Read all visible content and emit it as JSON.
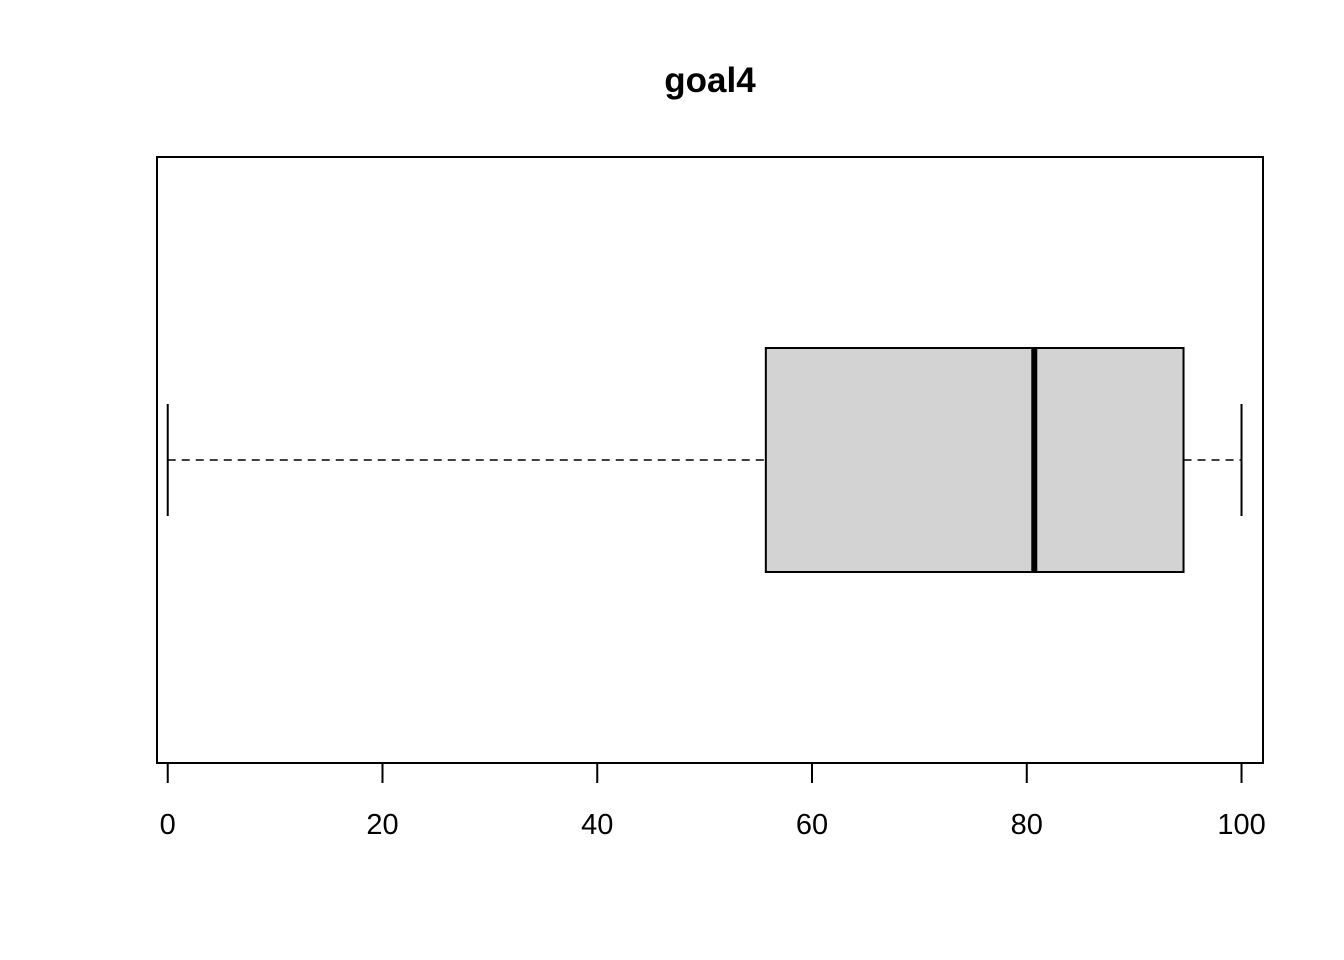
{
  "chart_data": {
    "type": "boxplot",
    "orientation": "horizontal",
    "title": "goal4",
    "xlabel": "",
    "ylabel": "",
    "xlim": [
      -1,
      102
    ],
    "x_ticks": [
      0,
      20,
      40,
      60,
      80,
      100
    ],
    "x_tick_labels": [
      "0",
      "20",
      "40",
      "60",
      "80",
      "100"
    ],
    "grid": false,
    "series": [
      {
        "min": 0,
        "q1": 55.7,
        "median": 80.7,
        "q3": 94.6,
        "max": 100
      }
    ],
    "colors": {
      "box_fill": "#d3d3d3",
      "stroke": "#000000",
      "background": "#ffffff"
    }
  }
}
